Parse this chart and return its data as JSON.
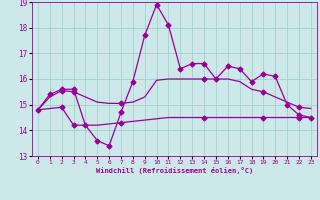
{
  "xlabel": "Windchill (Refroidissement éolien,°C)",
  "background_color": "#cce8e8",
  "grid_color": "#99cccc",
  "line_color": "#990099",
  "xlim": [
    -0.5,
    23.5
  ],
  "ylim": [
    13,
    19
  ],
  "yticks": [
    13,
    14,
    15,
    16,
    17,
    18,
    19
  ],
  "xticks": [
    0,
    1,
    2,
    3,
    4,
    5,
    6,
    7,
    8,
    9,
    10,
    11,
    12,
    13,
    14,
    15,
    16,
    17,
    18,
    19,
    20,
    21,
    22,
    23
  ],
  "s1_x": [
    0,
    1,
    2,
    3,
    4,
    5,
    6,
    7,
    8,
    9,
    10,
    11,
    12,
    13,
    14,
    15,
    16,
    17,
    18,
    19,
    20,
    21,
    22,
    23
  ],
  "s1_y": [
    14.8,
    15.4,
    15.6,
    15.6,
    14.2,
    13.6,
    13.4,
    14.7,
    15.9,
    17.7,
    18.9,
    18.1,
    16.4,
    16.6,
    16.6,
    16.0,
    16.5,
    16.4,
    15.9,
    16.2,
    16.1,
    15.0,
    14.6,
    14.5
  ],
  "s2_x": [
    0,
    1,
    2,
    3,
    4,
    5,
    6,
    7,
    8,
    9,
    10,
    11,
    12,
    13,
    14,
    15,
    16,
    17,
    18,
    19,
    20,
    21,
    22,
    23
  ],
  "s2_y": [
    14.8,
    15.3,
    15.55,
    15.5,
    15.3,
    15.1,
    15.05,
    15.05,
    15.1,
    15.3,
    15.95,
    16.0,
    16.0,
    16.0,
    16.0,
    16.0,
    16.0,
    15.9,
    15.6,
    15.5,
    15.3,
    15.1,
    14.9,
    14.85
  ],
  "s3_x": [
    0,
    1,
    2,
    3,
    4,
    5,
    6,
    7,
    8,
    9,
    10,
    11,
    12,
    13,
    14,
    15,
    16,
    17,
    18,
    19,
    20,
    21,
    22,
    23
  ],
  "s3_y": [
    14.8,
    14.85,
    14.9,
    14.2,
    14.2,
    14.2,
    14.25,
    14.3,
    14.35,
    14.4,
    14.45,
    14.5,
    14.5,
    14.5,
    14.5,
    14.5,
    14.5,
    14.5,
    14.5,
    14.5,
    14.5,
    14.5,
    14.5,
    14.5
  ]
}
